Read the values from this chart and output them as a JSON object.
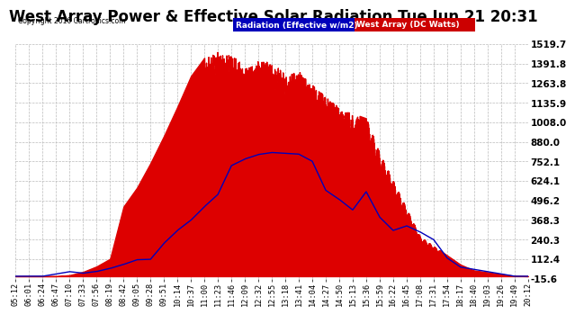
{
  "title": "West Array Power & Effective Solar Radiation Tue Jun 21 20:31",
  "copyright": "Copyright 2016 Cartronics.com",
  "legend_labels": [
    "Radiation (Effective w/m2)",
    "West Array (DC Watts)"
  ],
  "legend_colors": [
    "#0000bb",
    "#cc0000"
  ],
  "ytick_labels": [
    "-15.6",
    "112.4",
    "240.3",
    "368.3",
    "496.2",
    "624.1",
    "752.1",
    "880.0",
    "1008.0",
    "1135.9",
    "1263.8",
    "1391.8",
    "1519.7"
  ],
  "ytick_values": [
    -15.6,
    112.4,
    240.3,
    368.3,
    496.2,
    624.1,
    752.1,
    880.0,
    1008.0,
    1135.9,
    1263.8,
    1391.8,
    1519.7
  ],
  "ymin": -15.6,
  "ymax": 1519.7,
  "bg_color": "#ffffff",
  "grid_color": "#bbbbbb",
  "title_fontsize": 12,
  "axis_fontsize": 6.2,
  "xtick_labels": [
    "05:12",
    "06:01",
    "06:24",
    "06:47",
    "07:10",
    "07:33",
    "07:56",
    "08:19",
    "08:42",
    "09:05",
    "09:28",
    "09:51",
    "10:14",
    "10:37",
    "11:00",
    "11:23",
    "11:46",
    "12:09",
    "12:32",
    "12:55",
    "13:18",
    "13:41",
    "14:04",
    "14:27",
    "14:50",
    "15:13",
    "15:36",
    "15:59",
    "16:22",
    "16:45",
    "17:08",
    "17:31",
    "17:54",
    "18:17",
    "18:40",
    "19:03",
    "19:26",
    "19:49",
    "20:12"
  ]
}
